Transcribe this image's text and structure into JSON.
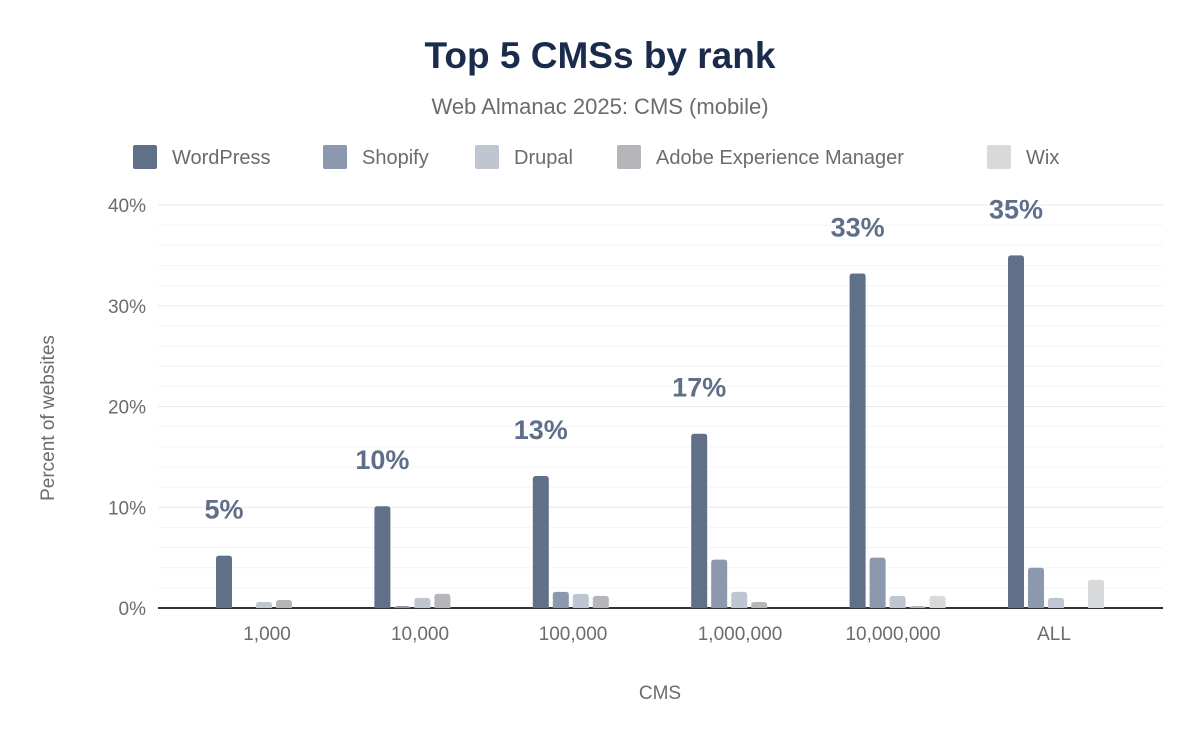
{
  "chart_data": {
    "type": "bar",
    "title": "Top 5 CMSs by rank",
    "subtitle": "Web Almanac 2025: CMS (mobile)",
    "xlabel": "CMS",
    "ylabel": "Percent of websites",
    "ylim": [
      0,
      40
    ],
    "yticks": [
      "0%",
      "10%",
      "20%",
      "30%",
      "40%"
    ],
    "grid": true,
    "legend_position": "top",
    "categories": [
      "1,000",
      "10,000",
      "100,000",
      "1,000,000",
      "10,000,000",
      "ALL"
    ],
    "series": [
      {
        "name": "WordPress",
        "color": "#617089",
        "values": [
          5.2,
          10.1,
          13.1,
          17.3,
          33.2,
          35.0
        ]
      },
      {
        "name": "Shopify",
        "color": "#8c98ad",
        "values": [
          0,
          0.2,
          1.6,
          4.8,
          5.0,
          4.0
        ]
      },
      {
        "name": "Drupal",
        "color": "#bfc6d1",
        "values": [
          0.6,
          1.0,
          1.4,
          1.6,
          1.2,
          1.0
        ]
      },
      {
        "name": "Adobe Experience Manager",
        "color": "#b6b6ba",
        "values": [
          0.8,
          1.4,
          1.2,
          0.6,
          0.2,
          0
        ]
      },
      {
        "name": "Wix",
        "color": "#d8d9db",
        "values": [
          0,
          0,
          0,
          0,
          1.2,
          2.8
        ]
      }
    ],
    "data_labels": [
      "5%",
      "10%",
      "13%",
      "17%",
      "33%",
      "35%"
    ]
  }
}
